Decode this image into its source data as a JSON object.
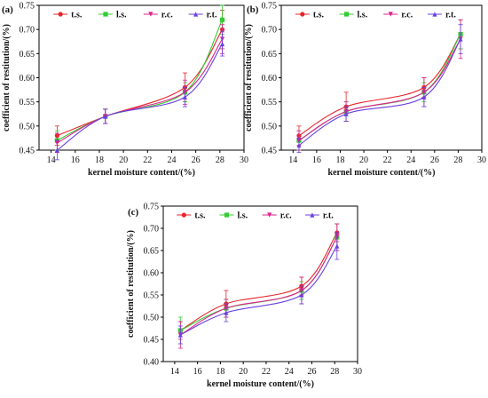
{
  "figure": {
    "panels": [
      {
        "letter": "(a)"
      },
      {
        "letter": "(b)"
      },
      {
        "letter": "(c)"
      }
    ]
  },
  "chart_data": [
    {
      "type": "line",
      "panel": "(a)",
      "xlabel": "kernel moisture content/(%)",
      "ylabel": "coefficient of restitution/(%)",
      "xlim": [
        13,
        30
      ],
      "ylim": [
        0.45,
        0.75
      ],
      "xticks": [
        14,
        16,
        18,
        20,
        22,
        24,
        26,
        28,
        30
      ],
      "yticks": [
        0.45,
        0.5,
        0.55,
        0.6,
        0.65,
        0.7,
        0.75
      ],
      "grid": false,
      "legend_position": "top",
      "x": [
        14.5,
        18.5,
        25.1,
        28.2
      ],
      "series": [
        {
          "name": "t.s.",
          "color": "#e8252b",
          "values": [
            0.48,
            0.52,
            0.58,
            0.7
          ],
          "err": [
            0.02,
            0.015,
            0.03,
            0.04
          ]
        },
        {
          "name": "l.s.",
          "color": "#33cc33",
          "values": [
            0.47,
            0.52,
            0.57,
            0.72
          ],
          "err": [
            0.02,
            0.015,
            0.02,
            0.03
          ]
        },
        {
          "name": "r.c.",
          "color": "#e0208c",
          "values": [
            0.465,
            0.52,
            0.57,
            0.68
          ],
          "err": [
            0.02,
            0.015,
            0.025,
            0.03
          ]
        },
        {
          "name": "r.t.",
          "color": "#6b3fe0",
          "values": [
            0.45,
            0.52,
            0.56,
            0.67
          ],
          "err": [
            0.02,
            0.015,
            0.02,
            0.025
          ]
        }
      ]
    },
    {
      "type": "line",
      "panel": "(b)",
      "xlabel": "kernel moisture content/(%)",
      "ylabel": "coefficient of restitution/(%)",
      "xlim": [
        13,
        30
      ],
      "ylim": [
        0.45,
        0.75
      ],
      "xticks": [
        14,
        16,
        18,
        20,
        22,
        24,
        26,
        28,
        30
      ],
      "yticks": [
        0.45,
        0.5,
        0.55,
        0.6,
        0.65,
        0.7,
        0.75
      ],
      "grid": false,
      "legend_position": "top",
      "x": [
        14.5,
        18.5,
        25.1,
        28.2
      ],
      "series": [
        {
          "name": "t.s.",
          "color": "#e8252b",
          "values": [
            0.48,
            0.54,
            0.58,
            0.69
          ],
          "err": [
            0.02,
            0.03,
            0.02,
            0.03
          ]
        },
        {
          "name": "l.s.",
          "color": "#33cc33",
          "values": [
            0.47,
            0.53,
            0.57,
            0.69
          ],
          "err": [
            0.02,
            0.02,
            0.02,
            0.03
          ]
        },
        {
          "name": "r.c.",
          "color": "#e0208c",
          "values": [
            0.47,
            0.53,
            0.57,
            0.68
          ],
          "err": [
            0.02,
            0.02,
            0.03,
            0.04
          ]
        },
        {
          "name": "r.t.",
          "color": "#6b3fe0",
          "values": [
            0.46,
            0.525,
            0.56,
            0.68
          ],
          "err": [
            0.015,
            0.015,
            0.02,
            0.03
          ]
        }
      ]
    },
    {
      "type": "line",
      "panel": "(c)",
      "xlabel": "kernel moisture content/(%)",
      "ylabel": "coefficient of restitution/(%)",
      "xlim": [
        13,
        30
      ],
      "ylim": [
        0.4,
        0.75
      ],
      "xticks": [
        14,
        16,
        18,
        20,
        22,
        24,
        26,
        28,
        30
      ],
      "yticks": [
        0.4,
        0.45,
        0.5,
        0.55,
        0.6,
        0.65,
        0.7,
        0.75
      ],
      "grid": false,
      "legend_position": "top",
      "x": [
        14.5,
        18.5,
        25.1,
        28.2
      ],
      "series": [
        {
          "name": "t.s.",
          "color": "#e8252b",
          "values": [
            0.47,
            0.53,
            0.57,
            0.69
          ],
          "err": [
            0.02,
            0.03,
            0.02,
            0.02
          ]
        },
        {
          "name": "l.s.",
          "color": "#33cc33",
          "values": [
            0.47,
            0.52,
            0.56,
            0.68
          ],
          "err": [
            0.03,
            0.02,
            0.02,
            0.03
          ]
        },
        {
          "name": "r.c.",
          "color": "#e0208c",
          "values": [
            0.46,
            0.52,
            0.56,
            0.68
          ],
          "err": [
            0.03,
            0.02,
            0.03,
            0.03
          ]
        },
        {
          "name": "r.t.",
          "color": "#6b3fe0",
          "values": [
            0.46,
            0.51,
            0.55,
            0.66
          ],
          "err": [
            0.02,
            0.02,
            0.02,
            0.03
          ]
        }
      ]
    }
  ]
}
